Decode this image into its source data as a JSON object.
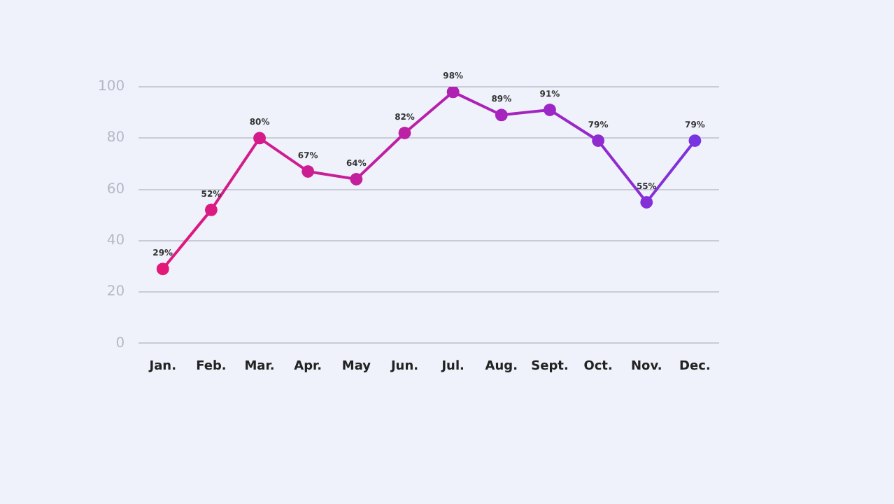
{
  "chart_data": {
    "type": "line",
    "categories": [
      "Jan.",
      "Feb.",
      "Mar.",
      "Apr.",
      "May",
      "Jun.",
      "Jul.",
      "Aug.",
      "Sept.",
      "Oct.",
      "Nov.",
      "Dec."
    ],
    "values": [
      29,
      52,
      80,
      67,
      64,
      82,
      98,
      89,
      91,
      79,
      55,
      79
    ],
    "value_labels": [
      "29%",
      "52%",
      "80%",
      "67%",
      "64%",
      "82%",
      "98%",
      "89%",
      "91%",
      "79%",
      "55%",
      "79%"
    ],
    "colors": [
      "#e3197a",
      "#db1a82",
      "#d31c8a",
      "#cc1e93",
      "#c41f9c",
      "#bc20a5",
      "#b021b3",
      "#a624bd",
      "#9c27c6",
      "#902bcf",
      "#8430d8",
      "#7834e0"
    ],
    "ylim": [
      0,
      100
    ],
    "yticks": [
      0,
      20,
      40,
      60,
      80,
      100
    ],
    "grid": "y",
    "marker": "circle",
    "line_style": "solid",
    "legend": false
  }
}
